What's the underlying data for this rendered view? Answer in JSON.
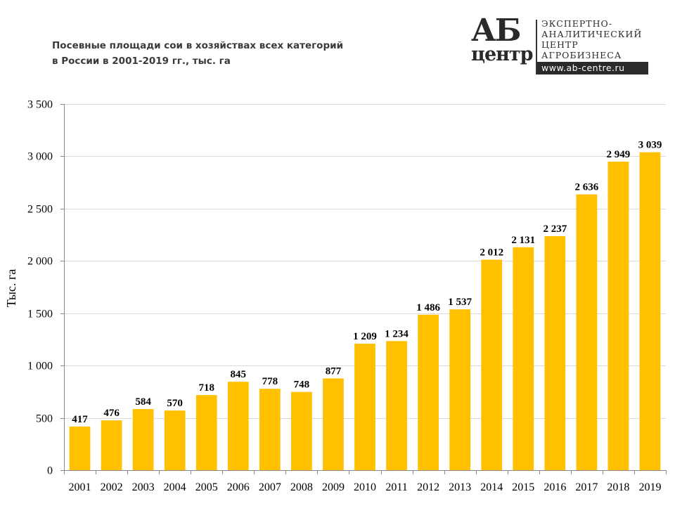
{
  "header": {
    "title_line1": "Посевные площади сои в хозяйствах всех категорий",
    "title_line2": "в России в 2001-2019 гг., тыс. га"
  },
  "logo": {
    "mark_top": "АБ",
    "mark_bottom": "центр",
    "text_lines": [
      "ЭКСПЕРТНО-",
      "АНАЛИТИЧЕСКИЙ",
      "ЦЕНТР",
      "АГРОБИЗНЕСА"
    ],
    "url": "www.ab-centre.ru"
  },
  "colors": {
    "bar": "#FFC000",
    "grid": "#D9D9D9",
    "axis": "#888888",
    "text": "#000000"
  },
  "chart_data": {
    "type": "bar",
    "title": "Посевные площади сои в хозяйствах всех категорий в России в 2001-2019 гг., тыс. га",
    "xlabel": "",
    "ylabel": "Тыс. га",
    "categories": [
      "2001",
      "2002",
      "2003",
      "2004",
      "2005",
      "2006",
      "2007",
      "2008",
      "2009",
      "2010",
      "2011",
      "2012",
      "2013",
      "2014",
      "2015",
      "2016",
      "2017",
      "2018",
      "2019"
    ],
    "values": [
      417,
      476,
      584,
      570,
      718,
      845,
      778,
      748,
      877,
      1209,
      1234,
      1486,
      1537,
      2012,
      2131,
      2237,
      2636,
      2949,
      3039
    ],
    "data_labels": [
      "417",
      "476",
      "584",
      "570",
      "718",
      "845",
      "778",
      "748",
      "877",
      "1 209",
      "1 234",
      "1 486",
      "1 537",
      "2 012",
      "2 131",
      "2 237",
      "2 636",
      "2 949",
      "3 039"
    ],
    "ylim": [
      0,
      3500
    ],
    "yticks": [
      0,
      500,
      1000,
      1500,
      2000,
      2500,
      3000,
      3500
    ],
    "ytick_labels": [
      "0",
      "500",
      "1 000",
      "1 500",
      "2 000",
      "2 500",
      "3 000",
      "3 500"
    ],
    "grid": true,
    "legend": "none"
  }
}
